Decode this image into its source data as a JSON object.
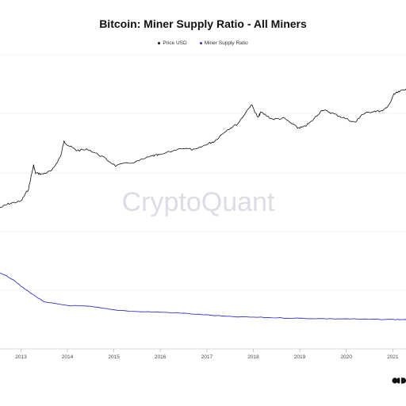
{
  "chart_data": {
    "type": "line",
    "title": "Bitcoin: Miner Supply Ratio - All Miners",
    "legend_position": "top-center",
    "grid": true,
    "x_ticks": [
      "2013",
      "2014",
      "2015",
      "2016",
      "2017",
      "2018",
      "2019",
      "2020",
      "2021"
    ],
    "xlim": [
      "2012-07-20",
      "2021-04-15"
    ],
    "series": [
      {
        "name": "Price USD",
        "color": "#111111",
        "scale": "log",
        "x": [
          "2012-07-20",
          "2012-10-01",
          "2013-01-01",
          "2013-03-01",
          "2013-04-10",
          "2013-04-25",
          "2013-06-15",
          "2013-09-01",
          "2013-11-10",
          "2013-12-04",
          "2014-01-15",
          "2014-03-15",
          "2014-06-15",
          "2014-10-01",
          "2015-01-14",
          "2015-07-01",
          "2015-11-04",
          "2016-01-01",
          "2016-06-17",
          "2016-10-01",
          "2017-01-01",
          "2017-03-01",
          "2017-06-01",
          "2017-09-01",
          "2017-12-17",
          "2018-02-06",
          "2018-03-01",
          "2018-06-01",
          "2018-09-01",
          "2018-12-15",
          "2019-02-01",
          "2019-04-01",
          "2019-06-26",
          "2019-09-01",
          "2019-12-01",
          "2020-03-12",
          "2020-05-01",
          "2020-08-01",
          "2020-10-15",
          "2020-12-15",
          "2021-01-08",
          "2021-02-15",
          "2021-04-15"
        ],
        "values": [
          8,
          11,
          13,
          33,
          200,
          110,
          100,
          130,
          400,
          1150,
          850,
          600,
          640,
          380,
          190,
          260,
          400,
          430,
          720,
          620,
          960,
          1200,
          2700,
          4500,
          19300,
          7000,
          10700,
          6300,
          6700,
          3300,
          3450,
          5200,
          12900,
          10300,
          7300,
          4900,
          8800,
          11600,
          11400,
          22000,
          41000,
          48000,
          62000
        ]
      },
      {
        "name": "Miner Supply Ratio",
        "color": "#3333cc",
        "x": [
          "2012-07-20",
          "2012-11-01",
          "2013-01-01",
          "2013-04-01",
          "2013-07-01",
          "2014-01-01",
          "2014-07-01",
          "2015-01-01",
          "2015-07-01",
          "2016-01-01",
          "2016-07-01",
          "2017-01-01",
          "2017-07-01",
          "2018-01-01",
          "2018-07-01",
          "2019-01-01",
          "2019-07-01",
          "2020-01-01",
          "2020-07-01",
          "2021-01-01",
          "2021-04-15"
        ],
        "values": [
          0.72,
          0.66,
          0.6,
          0.53,
          0.46,
          0.43,
          0.42,
          0.39,
          0.375,
          0.37,
          0.36,
          0.345,
          0.33,
          0.325,
          0.32,
          0.315,
          0.312,
          0.31,
          0.306,
          0.305,
          0.304
        ]
      }
    ]
  },
  "watermark": "CryptoQuant",
  "logo_icon": "cryptoquant-logo-icon"
}
